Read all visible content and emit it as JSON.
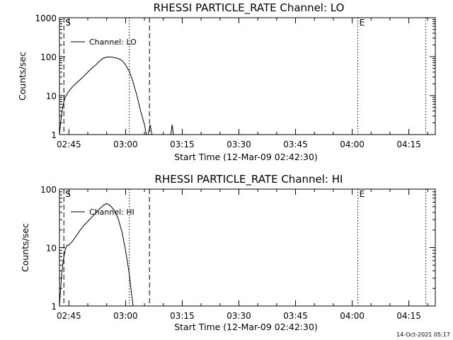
{
  "footer": {
    "timestamp": "14-Oct-2021 05:17"
  },
  "chart_data": [
    {
      "type": "line",
      "title": "RHESSI PARTICLE_RATE Channel: LO",
      "xlabel": "Start Time (12-Mar-09 02:42:30)",
      "ylabel": "Counts/sec",
      "yscale": "log",
      "xlim": [
        "02:42:30",
        "04:22:00"
      ],
      "ylim": [
        1,
        1000
      ],
      "x_ticks": [
        "02:45",
        "03:00",
        "03:15",
        "03:30",
        "03:45",
        "04:00",
        "04:15"
      ],
      "y_ticks": [
        "1",
        "10",
        "100",
        "1000"
      ],
      "legend": {
        "position": "top-left",
        "entries": [
          "Channel: LO"
        ]
      },
      "markers": [
        {
          "label": "S",
          "time": "02:43:40",
          "style": "dashed"
        },
        {
          "label": "",
          "time": "03:01:00",
          "style": "dotted"
        },
        {
          "label": "",
          "time": "03:06:20",
          "style": "dashed"
        },
        {
          "label": "E",
          "time": "04:01:30",
          "style": "dotted"
        },
        {
          "label": "",
          "time": "04:19:30",
          "style": "dotted"
        }
      ],
      "series": [
        {
          "name": "Channel: LO",
          "x": [
            "02:42:30",
            "02:43:00",
            "02:43:30",
            "02:44:00",
            "02:44:30",
            "02:45:00",
            "02:46:00",
            "02:47:00",
            "02:48:00",
            "02:49:00",
            "02:50:00",
            "02:51:00",
            "02:52:00",
            "02:53:00",
            "02:54:00",
            "02:55:00",
            "02:56:00",
            "02:57:00",
            "02:58:00",
            "02:59:00",
            "03:00:00",
            "03:01:00",
            "03:02:00",
            "03:03:00",
            "03:04:00",
            "03:05:00",
            "03:05:30",
            "03:06:00",
            "03:06:30",
            "03:07:00",
            "03:07:30",
            "03:08:00",
            "03:08:30",
            "03:09:00",
            "03:12:00",
            "03:12:20",
            "03:12:40",
            "03:13:00"
          ],
          "y": [
            1,
            3,
            6,
            9,
            11,
            13,
            17,
            21,
            26,
            32,
            40,
            50,
            60,
            75,
            90,
            98,
            98,
            95,
            90,
            80,
            62,
            42,
            22,
            10,
            4,
            1.8,
            1,
            1,
            1.8,
            1,
            1,
            1,
            1,
            1,
            1,
            1.8,
            1,
            1
          ]
        }
      ]
    },
    {
      "type": "line",
      "title": "RHESSI PARTICLE_RATE Channel: HI",
      "xlabel": "Start Time (12-Mar-09 02:42:30)",
      "ylabel": "Counts/sec",
      "yscale": "log",
      "xlim": [
        "02:42:30",
        "04:22:00"
      ],
      "ylim": [
        1,
        100
      ],
      "x_ticks": [
        "02:45",
        "03:00",
        "03:15",
        "03:30",
        "03:45",
        "04:00",
        "04:15"
      ],
      "y_ticks": [
        "1",
        "10",
        "100"
      ],
      "legend": {
        "position": "top-left",
        "entries": [
          "Channel: HI"
        ]
      },
      "markers": [
        {
          "label": "S",
          "time": "02:43:40",
          "style": "dashed"
        },
        {
          "label": "",
          "time": "03:01:00",
          "style": "dotted"
        },
        {
          "label": "",
          "time": "03:06:20",
          "style": "dashed"
        },
        {
          "label": "E",
          "time": "04:01:30",
          "style": "dotted"
        },
        {
          "label": "",
          "time": "04:19:30",
          "style": "dotted"
        }
      ],
      "series": [
        {
          "name": "Channel: HI",
          "x": [
            "02:42:30",
            "02:43:00",
            "02:43:30",
            "02:44:00",
            "02:44:30",
            "02:45:00",
            "02:46:00",
            "02:47:00",
            "02:48:00",
            "02:49:00",
            "02:50:00",
            "02:51:00",
            "02:52:00",
            "02:53:00",
            "02:54:00",
            "02:55:00",
            "02:56:00",
            "02:57:00",
            "02:58:00",
            "02:59:00",
            "03:00:00",
            "03:01:00",
            "03:01:30",
            "03:02:00"
          ],
          "y": [
            1,
            3,
            6,
            9,
            11,
            11,
            13,
            16,
            20,
            24,
            28,
            33,
            38,
            45,
            52,
            57,
            52,
            43,
            32,
            19,
            9,
            3.5,
            1.8,
            1
          ]
        }
      ]
    }
  ]
}
